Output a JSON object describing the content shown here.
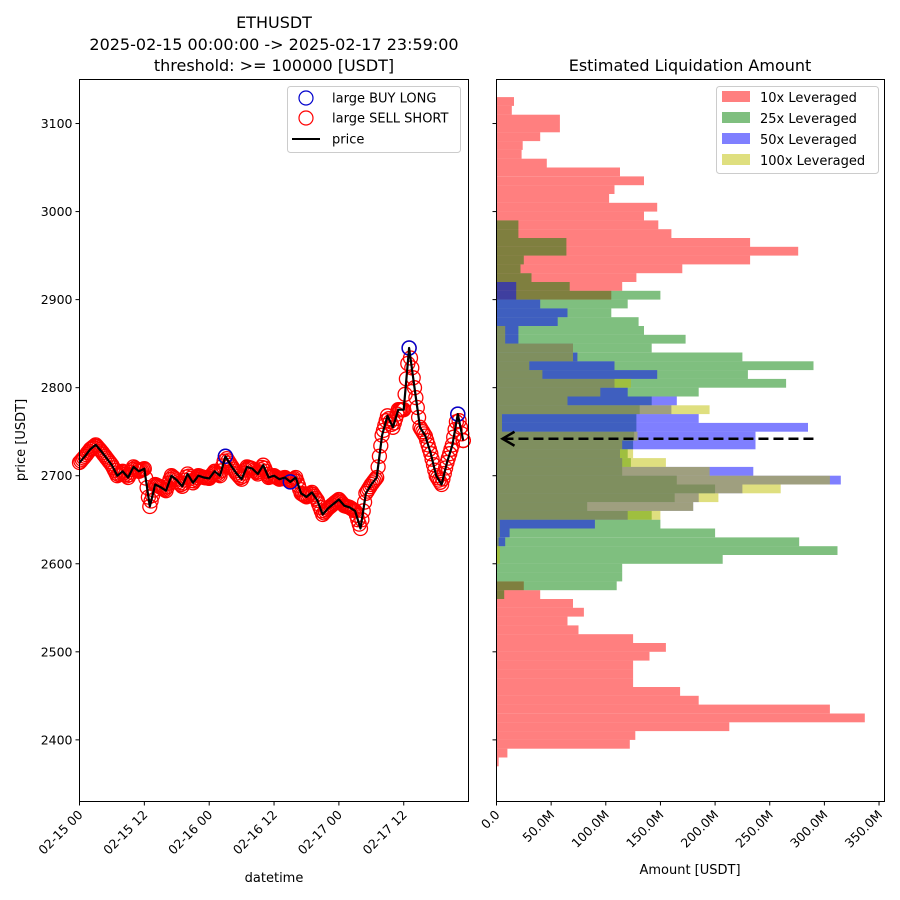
{
  "left_title": {
    "line1": "ETHUSDT",
    "line2": "2025-02-15 00:00:00 -> 2025-02-17 23:59:00",
    "line3": "threshold: >= 100000 [USDT]"
  },
  "right_title": "Estimated Liquidation Amount",
  "colors": {
    "buy": "#0000cc",
    "sell": "#ff0000",
    "price": "#000000",
    "lev10": "#ff0000",
    "lev25": "#008000",
    "lev50": "#0000ff",
    "lev100": "#bfbf00"
  },
  "chart_data": [
    {
      "type": "line",
      "title": "ETHUSDT 2025-02-15 00:00:00 -> 2025-02-17 23:59:00 threshold: >= 100000 [USDT]",
      "xlabel": "datetime",
      "ylabel": "price [USDT]",
      "xlim": [
        "2025-02-15 00:00",
        "2025-02-17 23:59"
      ],
      "ylim": [
        2330,
        3150
      ],
      "x_ticks": [
        "02-15 00",
        "02-15 12",
        "02-16 00",
        "02-16 12",
        "02-17 00",
        "02-17 12"
      ],
      "y_ticks": [
        2400,
        2500,
        2600,
        2700,
        2800,
        2900,
        3000,
        3100
      ],
      "legend": [
        "large BUY LONG",
        "large SELL SHORT",
        "price"
      ],
      "legend_position": "top-right",
      "series": [
        {
          "name": "price",
          "x": [
            "2025-02-15 00:00",
            "2025-02-15 01:00",
            "2025-02-15 02:00",
            "2025-02-15 03:00",
            "2025-02-15 04:00",
            "2025-02-15 05:00",
            "2025-02-15 06:00",
            "2025-02-15 07:00",
            "2025-02-15 08:00",
            "2025-02-15 09:00",
            "2025-02-15 10:00",
            "2025-02-15 11:00",
            "2025-02-15 12:00",
            "2025-02-15 13:00",
            "2025-02-15 14:00",
            "2025-02-15 15:00",
            "2025-02-15 16:00",
            "2025-02-15 17:00",
            "2025-02-15 18:00",
            "2025-02-15 19:00",
            "2025-02-15 20:00",
            "2025-02-15 21:00",
            "2025-02-15 22:00",
            "2025-02-15 23:00",
            "2025-02-16 00:00",
            "2025-02-16 01:00",
            "2025-02-16 02:00",
            "2025-02-16 03:00",
            "2025-02-16 04:00",
            "2025-02-16 05:00",
            "2025-02-16 06:00",
            "2025-02-16 07:00",
            "2025-02-16 08:00",
            "2025-02-16 09:00",
            "2025-02-16 10:00",
            "2025-02-16 11:00",
            "2025-02-16 12:00",
            "2025-02-16 13:00",
            "2025-02-16 14:00",
            "2025-02-16 15:00",
            "2025-02-16 16:00",
            "2025-02-16 17:00",
            "2025-02-16 18:00",
            "2025-02-16 19:00",
            "2025-02-16 20:00",
            "2025-02-16 21:00",
            "2025-02-16 22:00",
            "2025-02-16 23:00",
            "2025-02-17 00:00",
            "2025-02-17 01:00",
            "2025-02-17 02:00",
            "2025-02-17 03:00",
            "2025-02-17 04:00",
            "2025-02-17 05:00",
            "2025-02-17 06:00",
            "2025-02-17 07:00",
            "2025-02-17 08:00",
            "2025-02-17 09:00",
            "2025-02-17 10:00",
            "2025-02-17 11:00",
            "2025-02-17 12:00",
            "2025-02-17 13:00",
            "2025-02-17 14:00",
            "2025-02-17 15:00",
            "2025-02-17 16:00",
            "2025-02-17 17:00",
            "2025-02-17 18:00",
            "2025-02-17 19:00",
            "2025-02-17 20:00",
            "2025-02-17 21:00",
            "2025-02-17 22:00",
            "2025-02-17 23:00"
          ],
          "y": [
            2715,
            2722,
            2730,
            2735,
            2728,
            2720,
            2712,
            2700,
            2705,
            2698,
            2710,
            2705,
            2708,
            2665,
            2690,
            2687,
            2683,
            2700,
            2695,
            2688,
            2702,
            2692,
            2700,
            2698,
            2697,
            2705,
            2700,
            2722,
            2712,
            2703,
            2696,
            2710,
            2708,
            2702,
            2712,
            2698,
            2700,
            2696,
            2698,
            2693,
            2698,
            2680,
            2676,
            2681,
            2672,
            2656,
            2663,
            2668,
            2673,
            2666,
            2664,
            2660,
            2640,
            2680,
            2690,
            2698,
            2746,
            2768,
            2755,
            2775,
            2775,
            2845,
            2800,
            2755,
            2745,
            2725,
            2700,
            2690,
            2715,
            2735,
            2770,
            2740
          ]
        }
      ]
    },
    {
      "type": "bar",
      "orientation": "horizontal",
      "title": "Estimated Liquidation Amount",
      "xlabel": "Amount [USDT]",
      "ylabel": "",
      "xlim": [
        0,
        355
      ],
      "ylim": [
        2330,
        3150
      ],
      "x_ticks": [
        "0.0",
        "50.0M",
        "100.0M",
        "150.0M",
        "200.0M",
        "250.0M",
        "300.0M",
        "350.0M"
      ],
      "legend_position": "top-right",
      "bin_width": 10,
      "current_price": 2742,
      "current_price_arrow_end_m": 290,
      "series": [
        {
          "name": "10x Leveraged",
          "bins": [
            [
              2370,
              2
            ],
            [
              2380,
              10
            ],
            [
              2390,
              122
            ],
            [
              2400,
              127
            ],
            [
              2410,
              213
            ],
            [
              2420,
              337
            ],
            [
              2430,
              305
            ],
            [
              2440,
              185
            ],
            [
              2450,
              168
            ],
            [
              2460,
              125
            ],
            [
              2470,
              125
            ],
            [
              2480,
              125
            ],
            [
              2490,
              140
            ],
            [
              2500,
              155
            ],
            [
              2510,
              125
            ],
            [
              2520,
              75
            ],
            [
              2530,
              65
            ],
            [
              2540,
              80
            ],
            [
              2550,
              70
            ],
            [
              2560,
              40
            ],
            [
              2570,
              25
            ],
            [
              2900,
              105
            ],
            [
              2910,
              115
            ],
            [
              2920,
              128
            ],
            [
              2930,
              170
            ],
            [
              2940,
              232
            ],
            [
              2950,
              276
            ],
            [
              2960,
              232
            ],
            [
              2970,
              160
            ],
            [
              2980,
              148
            ],
            [
              2990,
              135
            ],
            [
              3000,
              147
            ],
            [
              3010,
              103
            ],
            [
              3020,
              108
            ],
            [
              3030,
              135
            ],
            [
              3040,
              113
            ],
            [
              3050,
              46
            ],
            [
              3060,
              23
            ],
            [
              3070,
              24
            ],
            [
              3080,
              40
            ],
            [
              3090,
              58
            ],
            [
              3100,
              58
            ],
            [
              3110,
              14
            ],
            [
              3120,
              16
            ]
          ]
        },
        {
          "name": "25x Leveraged",
          "bins": [
            [
              2560,
              7
            ],
            [
              2570,
              110
            ],
            [
              2580,
              115
            ],
            [
              2590,
              115
            ],
            [
              2600,
              207
            ],
            [
              2610,
              312
            ],
            [
              2620,
              277
            ],
            [
              2630,
              200
            ],
            [
              2640,
              150
            ],
            [
              2650,
              142
            ],
            [
              2660,
              83
            ],
            [
              2670,
              163
            ],
            [
              2680,
              200
            ],
            [
              2690,
              165
            ],
            [
              2700,
              115
            ],
            [
              2710,
              123
            ],
            [
              2720,
              120
            ],
            [
              2730,
              125
            ],
            [
              2740,
              126
            ],
            [
              2750,
              128
            ],
            [
              2760,
              128
            ],
            [
              2770,
              131
            ],
            [
              2780,
              142
            ],
            [
              2790,
              185
            ],
            [
              2800,
              265
            ],
            [
              2810,
              230
            ],
            [
              2820,
              290
            ],
            [
              2830,
              225
            ],
            [
              2840,
              142
            ],
            [
              2850,
              173
            ],
            [
              2860,
              135
            ],
            [
              2870,
              130
            ],
            [
              2880,
              105
            ],
            [
              2890,
              120
            ],
            [
              2900,
              150
            ],
            [
              2910,
              67
            ],
            [
              2920,
              32
            ],
            [
              2930,
              22
            ],
            [
              2940,
              25
            ],
            [
              2950,
              64
            ],
            [
              2960,
              64
            ],
            [
              2970,
              20
            ],
            [
              2980,
              20
            ]
          ]
        },
        {
          "name": "50x Leveraged",
          "bins": [
            [
              2620,
              8
            ],
            [
              2630,
              12
            ],
            [
              2640,
              90
            ],
            [
              2650,
              120
            ],
            [
              2660,
              180
            ],
            [
              2670,
              185
            ],
            [
              2680,
              225
            ],
            [
              2690,
              315
            ],
            [
              2700,
              235
            ],
            [
              2710,
              115
            ],
            [
              2720,
              113
            ],
            [
              2730,
              237
            ],
            [
              2740,
              237
            ],
            [
              2750,
              285
            ],
            [
              2760,
              185
            ],
            [
              2770,
              160
            ],
            [
              2780,
              165
            ],
            [
              2790,
              120
            ],
            [
              2800,
              108
            ],
            [
              2810,
              147
            ],
            [
              2820,
              108
            ],
            [
              2830,
              74
            ],
            [
              2840,
              70
            ],
            [
              2850,
              20
            ],
            [
              2860,
              20
            ],
            [
              2870,
              56
            ],
            [
              2880,
              65
            ],
            [
              2890,
              40
            ],
            [
              2900,
              18
            ],
            [
              2910,
              18
            ]
          ]
        },
        {
          "name": "100x Leveraged",
          "bins": [
            [
              2600,
              3
            ],
            [
              2610,
              3
            ],
            [
              2620,
              2
            ],
            [
              2630,
              3
            ],
            [
              2640,
              3
            ],
            [
              2650,
              150
            ],
            [
              2660,
              180
            ],
            [
              2670,
              203
            ],
            [
              2680,
              260
            ],
            [
              2690,
              305
            ],
            [
              2700,
              195
            ],
            [
              2710,
              155
            ],
            [
              2720,
              125
            ],
            [
              2730,
              115
            ],
            [
              2740,
              129
            ],
            [
              2750,
              5
            ],
            [
              2760,
              5
            ],
            [
              2770,
              195
            ],
            [
              2780,
              65
            ],
            [
              2790,
              95
            ],
            [
              2800,
              123
            ],
            [
              2810,
              42
            ],
            [
              2820,
              30
            ],
            [
              2830,
              70
            ],
            [
              2840,
              70
            ],
            [
              2850,
              8
            ],
            [
              2860,
              8
            ]
          ]
        }
      ]
    }
  ]
}
